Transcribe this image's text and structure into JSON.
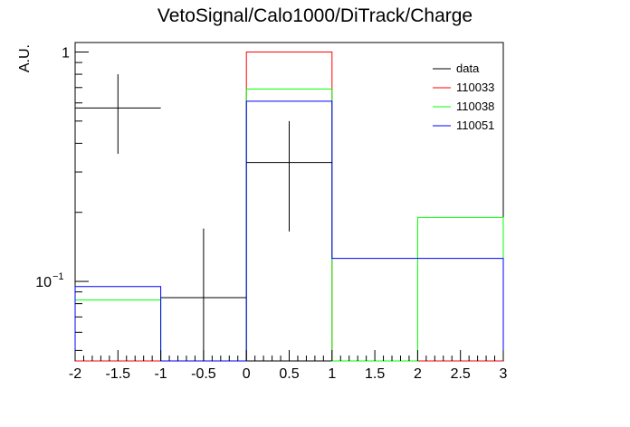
{
  "chart_data": {
    "type": "histogram",
    "title": "VetoSignal/Calo1000/DiTrack/Charge",
    "xlabel": "",
    "ylabel": "A.U.",
    "xlim": [
      -2,
      3
    ],
    "ylim": [
      0.045,
      1.1
    ],
    "yscale": "log",
    "grid": false,
    "legend_position": "top-right",
    "x_ticks": [
      "-2",
      "-1.5",
      "-1",
      "-0.5",
      "0",
      "0.5",
      "1",
      "1.5",
      "2",
      "2.5",
      "3"
    ],
    "y_ticks": [
      "1",
      "10^-1"
    ],
    "bin_edges": [
      -2,
      -1,
      0,
      1,
      2,
      3
    ],
    "series": [
      {
        "name": "110033",
        "color": "#ff0000",
        "style": "step",
        "values": [
          0,
          0,
          1.0,
          0,
          0
        ]
      },
      {
        "name": "110038",
        "color": "#00ff00",
        "style": "step",
        "values": [
          0.083,
          0,
          0.69,
          0,
          0.19
        ]
      },
      {
        "name": "110051",
        "color": "#0000ff",
        "style": "step",
        "values": [
          0.095,
          0,
          0.61,
          0.126,
          0.126
        ]
      },
      {
        "name": "data",
        "color": "#000000",
        "style": "errorbar",
        "values": [
          0.57,
          0.085,
          0.33,
          0,
          0
        ],
        "err_low": [
          0.21,
          0.04,
          0.165,
          0,
          0
        ],
        "err_high": [
          0.23,
          0.085,
          0.17,
          0,
          0
        ]
      }
    ],
    "legend": [
      "data",
      "110033",
      "110038",
      "110051"
    ]
  }
}
